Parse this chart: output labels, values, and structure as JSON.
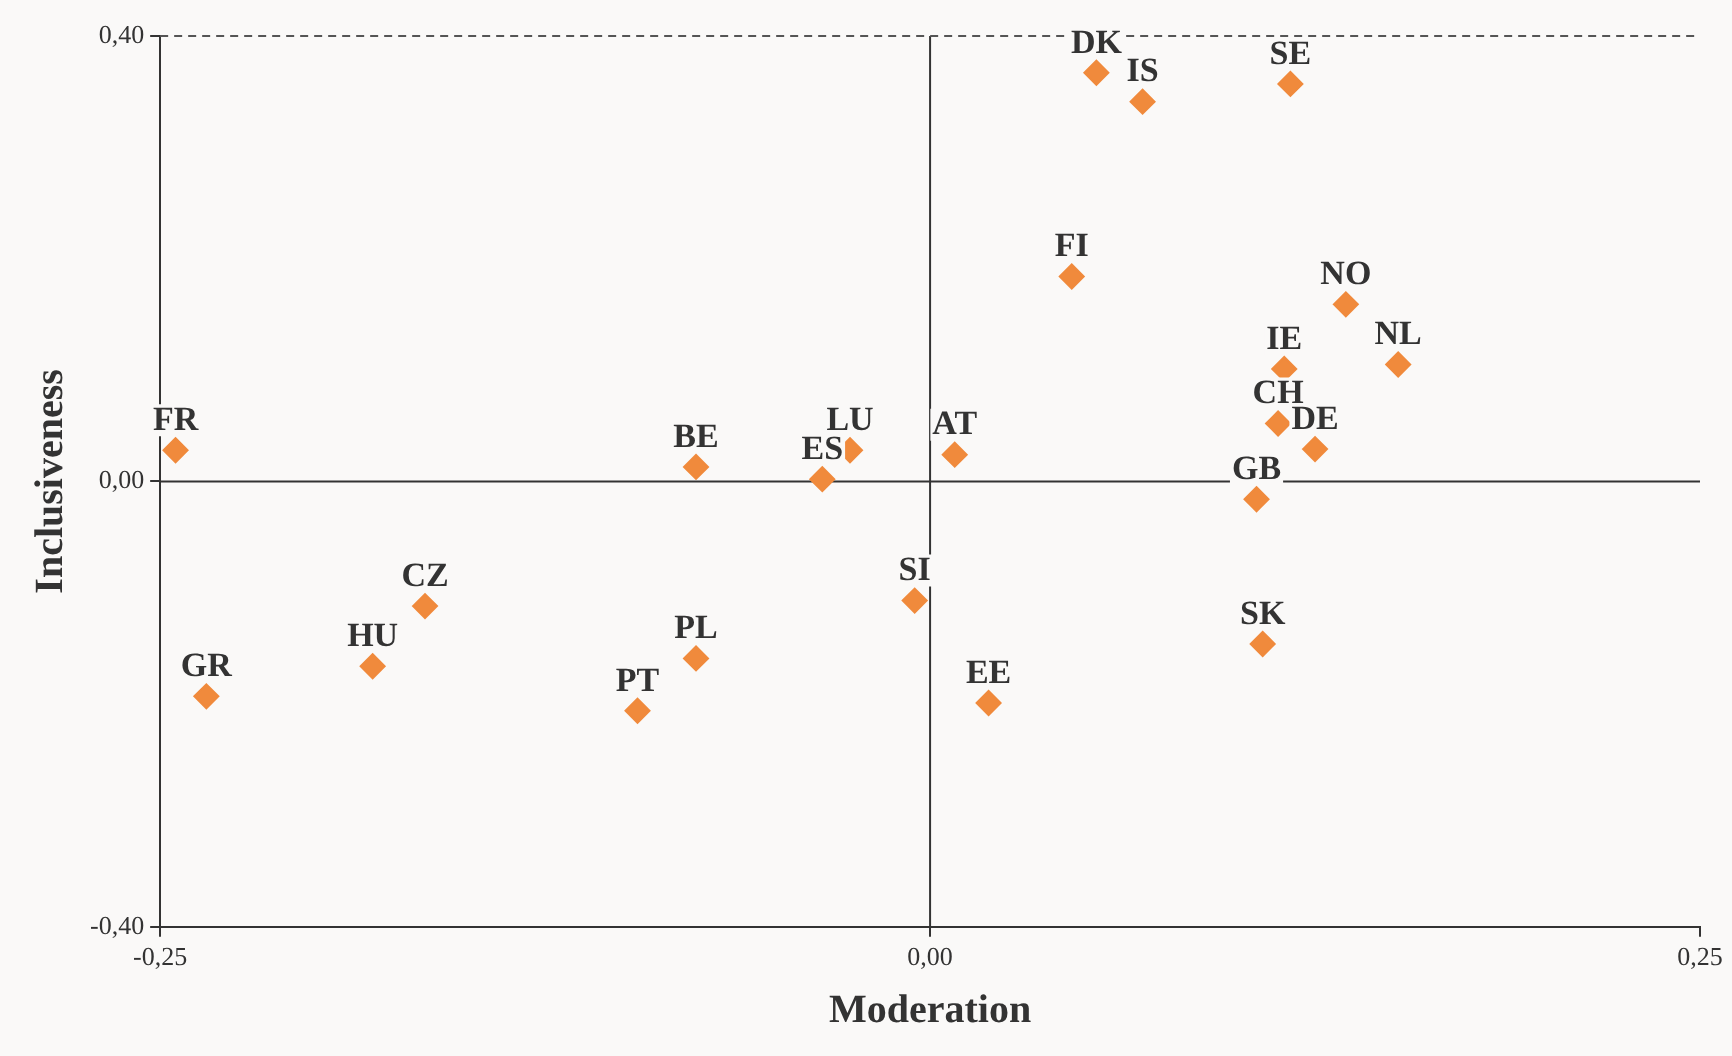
{
  "chart_data": {
    "type": "scatter",
    "xlabel": "Moderation",
    "ylabel": "Inclusiveness",
    "x": [
      -0.245,
      -0.076,
      -0.035,
      -0.026,
      -0.164,
      -0.181,
      -0.235,
      -0.076,
      -0.095,
      -0.005,
      0.008,
      0.054,
      0.069,
      0.117,
      0.046,
      0.135,
      0.152,
      0.115,
      0.113,
      0.125,
      0.106,
      0.108,
      0.019
    ],
    "series": [
      {
        "color": "#f08a3c",
        "values": [
          0.028,
          0.013,
          0.002,
          0.028,
          -0.112,
          -0.166,
          -0.193,
          -0.159,
          -0.206,
          -0.107,
          0.024,
          0.367,
          0.341,
          0.357,
          0.184,
          0.159,
          0.105,
          0.101,
          0.052,
          0.029,
          -0.016,
          -0.146,
          -0.199
        ]
      }
    ],
    "annotations": [
      {
        "text": "FR",
        "x": -0.245,
        "y": 0.028
      },
      {
        "text": "BE",
        "x": -0.076,
        "y": 0.013
      },
      {
        "text": "ES",
        "x": -0.035,
        "y": 0.002
      },
      {
        "text": "LU",
        "x": -0.026,
        "y": 0.028
      },
      {
        "text": "CZ",
        "x": -0.164,
        "y": -0.112
      },
      {
        "text": "HU",
        "x": -0.181,
        "y": -0.166
      },
      {
        "text": "GR",
        "x": -0.235,
        "y": -0.193
      },
      {
        "text": "PL",
        "x": -0.076,
        "y": -0.159
      },
      {
        "text": "PT",
        "x": -0.095,
        "y": -0.206
      },
      {
        "text": "SI",
        "x": -0.005,
        "y": -0.107
      },
      {
        "text": "AT",
        "x": 0.008,
        "y": 0.024
      },
      {
        "text": "DK",
        "x": 0.054,
        "y": 0.367
      },
      {
        "text": "IS",
        "x": 0.069,
        "y": 0.341
      },
      {
        "text": "SE",
        "x": 0.117,
        "y": 0.357
      },
      {
        "text": "FI",
        "x": 0.046,
        "y": 0.184
      },
      {
        "text": "NO",
        "x": 0.135,
        "y": 0.159
      },
      {
        "text": "NL",
        "x": 0.152,
        "y": 0.105
      },
      {
        "text": "IE",
        "x": 0.115,
        "y": 0.101
      },
      {
        "text": "CH",
        "x": 0.113,
        "y": 0.052
      },
      {
        "text": "DE",
        "x": 0.125,
        "y": 0.029
      },
      {
        "text": "GB",
        "x": 0.106,
        "y": -0.016
      },
      {
        "text": "SK",
        "x": 0.108,
        "y": -0.146
      },
      {
        "text": "EE",
        "x": 0.019,
        "y": -0.199
      }
    ],
    "xlim": [
      -0.25,
      0.25
    ],
    "ylim": [
      -0.4,
      0.4
    ],
    "xticks": [
      {
        "value": -0.25,
        "label": "-0,25"
      },
      {
        "value": 0,
        "label": "0,00"
      },
      {
        "value": 0.25,
        "label": "0,25"
      }
    ],
    "yticks": [
      {
        "value": -0.4,
        "label": "-0,40"
      },
      {
        "value": 0,
        "label": "0,00"
      },
      {
        "value": 0.4,
        "label": "0,40"
      }
    ],
    "ref_lines": [
      {
        "axis": "x",
        "value": 0,
        "color": "#333333",
        "line_style": "solid"
      },
      {
        "axis": "y",
        "value": 0,
        "color": "#333333",
        "line_style": "solid"
      },
      {
        "axis": "y",
        "value": 0.4,
        "color": "#555555",
        "line_style": "dashed"
      }
    ],
    "grid": false,
    "legend": false,
    "marker": "diamond"
  }
}
